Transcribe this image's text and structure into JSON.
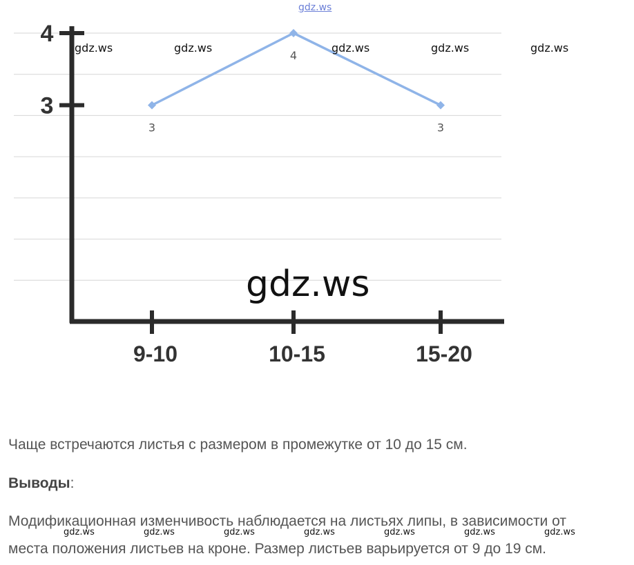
{
  "watermark": {
    "text": "gdz.ws"
  },
  "chart_data": {
    "type": "line",
    "categories": [
      "9-10",
      "10-15",
      "15-20"
    ],
    "series": [
      {
        "values": [
          3,
          4,
          3
        ],
        "color": "#8fb4e8"
      }
    ],
    "data_labels": [
      "3",
      "4",
      "3"
    ],
    "y_ticks": [
      "3",
      "4"
    ],
    "ylim": [
      0,
      4
    ],
    "grid": true,
    "title": "",
    "xlabel": "",
    "ylabel": ""
  },
  "text": {
    "line1": "Чаще встречаются листья с размером в промежутке от 10 до 15 см.",
    "heading": "Выводы",
    "heading_colon": ":",
    "para_line1": "Модификационная изменчивость наблюдается на листьях липы, в зависимости от",
    "para_line2": "места положения листьев на кроне. Размер листьев варьируется от 9 до 19 см."
  }
}
